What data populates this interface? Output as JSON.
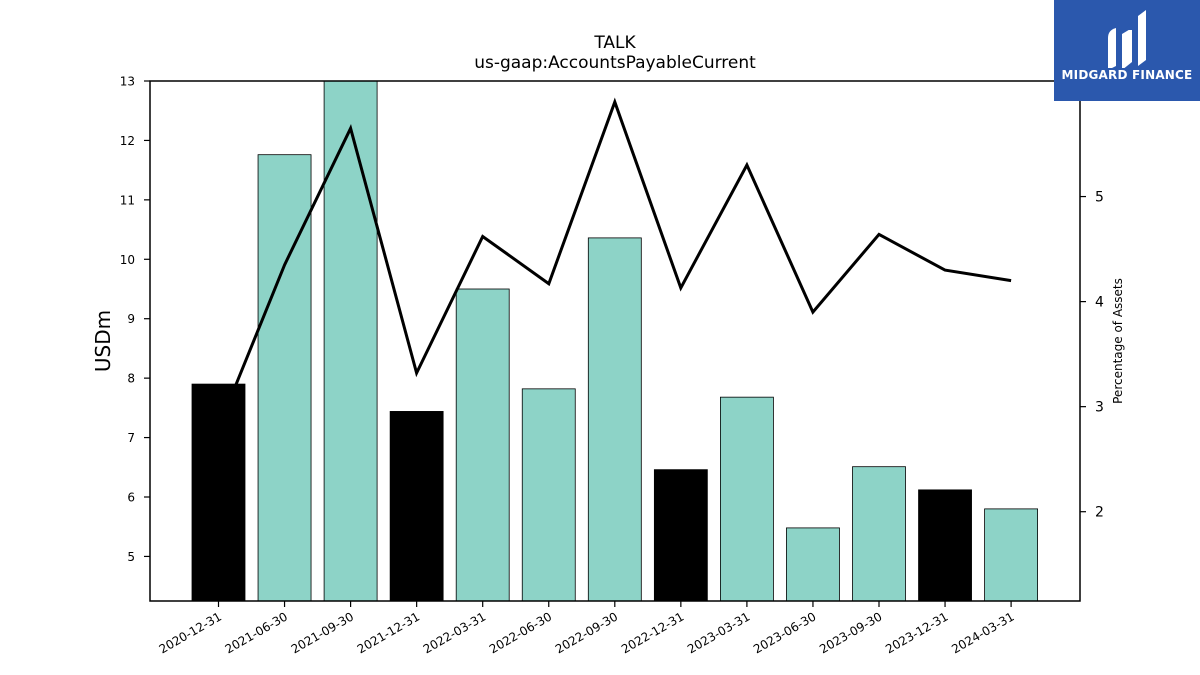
{
  "chart_data": {
    "type": "bar",
    "title": "TALK",
    "subtitle": "us-gaap:AccountsPayableCurrent",
    "ylabel": "USDm",
    "y2label": "Percentage of Assets",
    "ylim": [
      4.25,
      13.0
    ],
    "y2lim": [
      1.15,
      6.1
    ],
    "yticks": [
      5,
      6,
      7,
      8,
      9,
      10,
      11,
      12,
      13
    ],
    "y2ticks": [
      2,
      3,
      4,
      5
    ],
    "categories": [
      "2020-12-31",
      "2021-06-30",
      "2021-09-30",
      "2021-12-31",
      "2022-03-31",
      "2022-06-30",
      "2022-09-30",
      "2022-12-31",
      "2023-03-31",
      "2023-06-30",
      "2023-09-30",
      "2023-12-31",
      "2024-03-31"
    ],
    "series": [
      {
        "type": "bar",
        "axis": "left",
        "values": [
          7.9,
          11.76,
          13.05,
          7.44,
          9.5,
          7.82,
          10.36,
          6.46,
          7.68,
          5.48,
          6.51,
          6.12,
          5.8
        ],
        "colors": [
          "#000000",
          "#8dd3c7",
          "#8dd3c7",
          "#000000",
          "#8dd3c7",
          "#8dd3c7",
          "#8dd3c7",
          "#000000",
          "#8dd3c7",
          "#8dd3c7",
          "#8dd3c7",
          "#000000",
          "#8dd3c7"
        ]
      },
      {
        "type": "line",
        "axis": "right",
        "color": "#000000",
        "values": [
          2.8,
          4.35,
          5.65,
          3.32,
          4.62,
          4.17,
          5.9,
          4.13,
          5.3,
          3.9,
          4.64,
          4.3,
          4.2
        ]
      }
    ],
    "grid": false
  },
  "logo": {
    "text": "MIDGARD FINANCE",
    "bg_color": "#2b58ad"
  }
}
